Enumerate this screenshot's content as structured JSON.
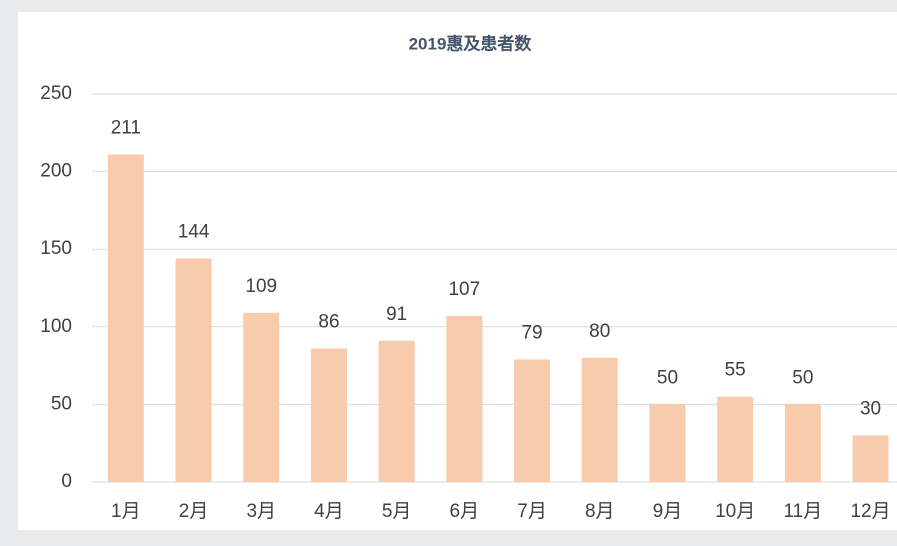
{
  "chart_data": {
    "type": "bar",
    "title": "2019惠及患者数",
    "categories": [
      "1月",
      "2月",
      "3月",
      "4月",
      "5月",
      "6月",
      "7月",
      "8月",
      "9月",
      "10月",
      "11月",
      "12月"
    ],
    "values": [
      211,
      144,
      109,
      86,
      91,
      107,
      79,
      80,
      50,
      55,
      50,
      30
    ],
    "color": "#f8cbad",
    "ylim": [
      0,
      250
    ],
    "yticks": [
      0,
      50,
      100,
      150,
      200,
      250
    ],
    "grid": true
  }
}
